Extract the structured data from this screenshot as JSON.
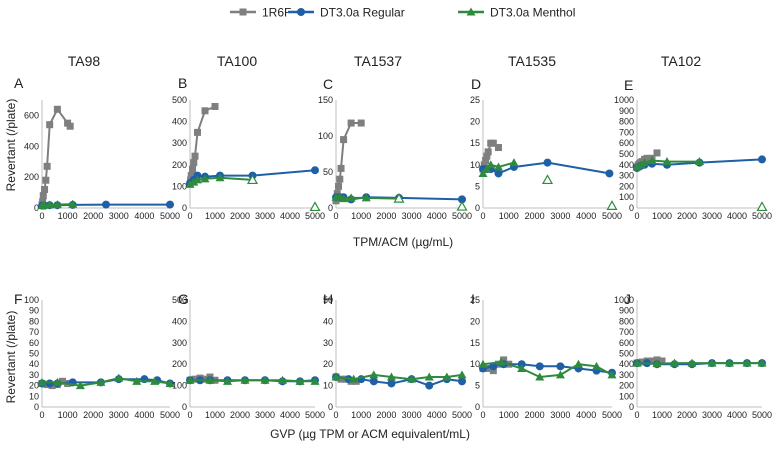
{
  "legend": {
    "items": [
      {
        "label": "1R6F",
        "color": "#7f7f7f",
        "marker": "square"
      },
      {
        "label": "DT3.0a Regular",
        "color": "#1f5fa6",
        "marker": "circle"
      },
      {
        "label": "DT3.0a Menthol",
        "color": "#2e8b3e",
        "marker": "triangle"
      }
    ]
  },
  "strain_titles": [
    "TA98",
    "TA100",
    "TA1537",
    "TA1535",
    "TA102"
  ],
  "row_labels": {
    "ylabel_top": "Revertant  (/plate)",
    "ylabel_bottom": "Revertant  (/plate)",
    "xlabel_top": "TPM/ACM (µg/mL)",
    "xlabel_bottom": "GVP (µg TPM or ACM equivalent/mL)"
  },
  "chart_data": [
    {
      "type": "line",
      "panel": "A",
      "strain": "TA98",
      "row": "TPM/ACM",
      "ylim": [
        0,
        700
      ],
      "yticks": [
        0,
        200,
        400,
        600
      ],
      "xlim": [
        0,
        5000
      ],
      "xticks": [
        0,
        1000,
        2000,
        3000,
        4000,
        5000
      ],
      "series": [
        {
          "name": "1R6F",
          "x": [
            0,
            25,
            50,
            100,
            150,
            200,
            300,
            600,
            1000,
            1100
          ],
          "y": [
            20,
            40,
            80,
            120,
            180,
            270,
            540,
            640,
            550,
            530
          ]
        },
        {
          "name": "DT3.0a Regular",
          "x": [
            0,
            100,
            300,
            600,
            1200,
            2500,
            5000
          ],
          "y": [
            15,
            15,
            18,
            18,
            20,
            22,
            22
          ]
        },
        {
          "name": "DT3.0a Menthol",
          "x": [
            0,
            100,
            300,
            600,
            1200
          ],
          "y": [
            15,
            18,
            20,
            22,
            25
          ]
        }
      ]
    },
    {
      "type": "line",
      "panel": "B",
      "strain": "TA100",
      "row": "TPM/ACM",
      "ylim": [
        0,
        500
      ],
      "yticks": [
        0,
        100,
        200,
        300,
        400,
        500
      ],
      "xlim": [
        0,
        5000
      ],
      "xticks": [
        0,
        1000,
        2000,
        3000,
        4000,
        5000
      ],
      "series": [
        {
          "name": "1R6F",
          "x": [
            0,
            25,
            50,
            100,
            150,
            200,
            300,
            600,
            1000
          ],
          "y": [
            110,
            130,
            150,
            180,
            210,
            240,
            350,
            450,
            470
          ]
        },
        {
          "name": "DT3.0a Regular",
          "x": [
            0,
            150,
            300,
            600,
            1200,
            2500,
            5000
          ],
          "y": [
            115,
            130,
            150,
            145,
            150,
            150,
            175
          ]
        },
        {
          "name": "DT3.0a Menthol",
          "x": [
            0,
            150,
            300,
            600,
            1200,
            2500
          ],
          "y": [
            110,
            120,
            130,
            135,
            140,
            130
          ]
        }
      ],
      "open_markers": [
        {
          "x": 2500,
          "y": 130
        },
        {
          "x": 5000,
          "y": 5
        }
      ]
    },
    {
      "type": "line",
      "panel": "C",
      "strain": "TA1537",
      "row": "TPM/ACM",
      "ylim": [
        0,
        150
      ],
      "yticks": [
        0,
        50,
        100,
        150
      ],
      "xlim": [
        0,
        5000
      ],
      "xticks": [
        0,
        1000,
        2000,
        3000,
        4000,
        5000
      ],
      "series": [
        {
          "name": "1R6F",
          "x": [
            0,
            50,
            100,
            150,
            200,
            300,
            600,
            1000
          ],
          "y": [
            10,
            20,
            30,
            40,
            55,
            95,
            118,
            118
          ]
        },
        {
          "name": "DT3.0a Regular",
          "x": [
            0,
            150,
            300,
            600,
            1200,
            2500,
            5000
          ],
          "y": [
            15,
            15,
            15,
            12,
            15,
            14,
            12
          ]
        },
        {
          "name": "DT3.0a Menthol",
          "x": [
            0,
            150,
            300,
            600,
            1200,
            2500
          ],
          "y": [
            15,
            15,
            13,
            14,
            14,
            13
          ]
        }
      ],
      "open_markers": [
        {
          "x": 2500,
          "y": 13
        },
        {
          "x": 5000,
          "y": 2
        }
      ]
    },
    {
      "type": "line",
      "panel": "D",
      "strain": "TA1535",
      "row": "TPM/ACM",
      "ylim": [
        0,
        25
      ],
      "yticks": [
        0,
        5,
        10,
        15,
        20,
        25
      ],
      "xlim": [
        0,
        5000
      ],
      "xticks": [
        0,
        1000,
        2000,
        3000,
        4000,
        5000
      ],
      "series": [
        {
          "name": "1R6F",
          "x": [
            0,
            50,
            100,
            150,
            200,
            300,
            400,
            600
          ],
          "y": [
            9,
            10,
            11,
            12,
            13,
            15,
            15,
            14
          ]
        },
        {
          "name": "DT3.0a Regular",
          "x": [
            0,
            150,
            300,
            600,
            1200,
            2500,
            4900
          ],
          "y": [
            9,
            9,
            9,
            8,
            9.5,
            10.5,
            8
          ]
        },
        {
          "name": "DT3.0a Menthol",
          "x": [
            0,
            150,
            300,
            600,
            1200
          ],
          "y": [
            8,
            9,
            10,
            9.5,
            10.5
          ]
        }
      ],
      "open_markers": [
        {
          "x": 2500,
          "y": 6.5
        },
        {
          "x": 5000,
          "y": 0.5
        }
      ]
    },
    {
      "type": "line",
      "panel": "E",
      "strain": "TA102",
      "row": "TPM/ACM",
      "ylim": [
        0,
        1000
      ],
      "yticks": [
        0,
        100,
        200,
        300,
        400,
        500,
        600,
        700,
        800,
        900,
        1000
      ],
      "xlim": [
        0,
        5000
      ],
      "xticks": [
        0,
        1000,
        2000,
        3000,
        4000,
        5000
      ],
      "series": [
        {
          "name": "1R6F",
          "x": [
            0,
            50,
            100,
            150,
            200,
            300,
            400,
            600,
            800
          ],
          "y": [
            380,
            400,
            410,
            420,
            430,
            450,
            460,
            460,
            510
          ]
        },
        {
          "name": "DT3.0a Regular",
          "x": [
            0,
            150,
            300,
            600,
            1200,
            2500,
            5000
          ],
          "y": [
            370,
            390,
            400,
            410,
            400,
            420,
            450
          ]
        },
        {
          "name": "DT3.0a Menthol",
          "x": [
            0,
            150,
            300,
            600,
            1200,
            2500
          ],
          "y": [
            380,
            400,
            420,
            440,
            430,
            430
          ]
        }
      ],
      "open_markers": [
        {
          "x": 5000,
          "y": 10
        }
      ]
    },
    {
      "type": "line",
      "panel": "F",
      "strain": "TA98",
      "row": "GVP",
      "ylim": [
        0,
        100
      ],
      "yticks": [
        0,
        10,
        20,
        30,
        40,
        50,
        60,
        70,
        80,
        90,
        100
      ],
      "xlim": [
        0,
        5000
      ],
      "xticks": [
        0,
        1000,
        2000,
        3000,
        4000,
        5000
      ],
      "series": [
        {
          "name": "1R6F",
          "x": [
            0,
            200,
            400,
            600,
            800,
            1000
          ],
          "y": [
            22,
            21,
            20,
            21,
            24,
            22
          ]
        },
        {
          "name": "DT3.0a Regular",
          "x": [
            0,
            300,
            600,
            1200,
            2300,
            3000,
            4000,
            4500,
            5000
          ],
          "y": [
            22,
            22,
            22,
            23,
            23,
            26,
            26,
            25,
            22
          ]
        },
        {
          "name": "DT3.0a Menthol",
          "x": [
            0,
            600,
            1500,
            2300,
            3000,
            3700,
            4400,
            5000
          ],
          "y": [
            23,
            23,
            20,
            23,
            27,
            24,
            24,
            22
          ]
        }
      ]
    },
    {
      "type": "line",
      "panel": "G",
      "strain": "TA100",
      "row": "GVP",
      "ylim": [
        0,
        500
      ],
      "yticks": [
        0,
        100,
        200,
        300,
        400,
        500
      ],
      "xlim": [
        0,
        5000
      ],
      "xticks": [
        0,
        1000,
        2000,
        3000,
        4000,
        5000
      ],
      "series": [
        {
          "name": "1R6F",
          "x": [
            0,
            200,
            400,
            600,
            800,
            1000
          ],
          "y": [
            125,
            130,
            135,
            130,
            140,
            125
          ]
        },
        {
          "name": "DT3.0a Regular",
          "x": [
            0,
            400,
            800,
            1500,
            2200,
            3000,
            3700,
            4400,
            5000
          ],
          "y": [
            125,
            125,
            125,
            125,
            125,
            125,
            120,
            120,
            125
          ]
        },
        {
          "name": "DT3.0a Menthol",
          "x": [
            0,
            800,
            1500,
            2200,
            3000,
            3700,
            4400,
            5000
          ],
          "y": [
            125,
            125,
            120,
            125,
            125,
            125,
            120,
            120
          ]
        }
      ]
    },
    {
      "type": "line",
      "panel": "H",
      "strain": "TA1537",
      "row": "GVP",
      "ylim": [
        0,
        50
      ],
      "yticks": [
        0,
        10,
        20,
        30,
        40,
        50
      ],
      "xlim": [
        0,
        5000
      ],
      "xticks": [
        0,
        1000,
        2000,
        3000,
        4000,
        5000
      ],
      "series": [
        {
          "name": "1R6F",
          "x": [
            0,
            200,
            400,
            600,
            800
          ],
          "y": [
            14,
            13,
            13,
            12,
            12
          ]
        },
        {
          "name": "DT3.0a Regular",
          "x": [
            0,
            500,
            1000,
            1500,
            2200,
            3000,
            3700,
            4400,
            5000
          ],
          "y": [
            14,
            13,
            13,
            12,
            11,
            13,
            10,
            13,
            12
          ]
        },
        {
          "name": "DT3.0a Menthol",
          "x": [
            0,
            700,
            1500,
            2200,
            3000,
            3700,
            4400,
            5000
          ],
          "y": [
            14,
            13,
            15,
            14,
            13,
            14,
            14,
            15
          ]
        }
      ]
    },
    {
      "type": "line",
      "panel": "I",
      "strain": "TA1535",
      "row": "GVP",
      "ylim": [
        0,
        25
      ],
      "yticks": [
        0,
        5,
        10,
        15,
        20,
        25
      ],
      "xlim": [
        0,
        5000
      ],
      "xticks": [
        0,
        1000,
        2000,
        3000,
        4000,
        5000
      ],
      "series": [
        {
          "name": "1R6F",
          "x": [
            0,
            200,
            400,
            600,
            800,
            1000
          ],
          "y": [
            9,
            9,
            8.5,
            10,
            11,
            10
          ]
        },
        {
          "name": "DT3.0a Regular",
          "x": [
            0,
            400,
            800,
            1500,
            2200,
            3000,
            3700,
            4400,
            5000
          ],
          "y": [
            9,
            9.5,
            10,
            10,
            9.5,
            9.5,
            9,
            8.5,
            8
          ]
        },
        {
          "name": "DT3.0a Menthol",
          "x": [
            0,
            700,
            1500,
            2200,
            3000,
            3700,
            4400,
            5000
          ],
          "y": [
            10,
            10.5,
            9,
            7,
            7.5,
            10,
            9.5,
            7.5
          ]
        }
      ]
    },
    {
      "type": "line",
      "panel": "J",
      "strain": "TA102",
      "row": "GVP",
      "ylim": [
        0,
        1000
      ],
      "yticks": [
        0,
        100,
        200,
        300,
        400,
        500,
        600,
        700,
        800,
        900,
        1000
      ],
      "xlim": [
        0,
        5000
      ],
      "xticks": [
        0,
        1000,
        2000,
        3000,
        4000,
        5000
      ],
      "series": [
        {
          "name": "1R6F",
          "x": [
            0,
            200,
            400,
            600,
            800,
            1000
          ],
          "y": [
            410,
            420,
            430,
            430,
            440,
            430
          ]
        },
        {
          "name": "DT3.0a Regular",
          "x": [
            0,
            400,
            800,
            1500,
            2200,
            3000,
            3700,
            4400,
            5000
          ],
          "y": [
            410,
            410,
            400,
            400,
            400,
            410,
            410,
            410,
            410
          ]
        },
        {
          "name": "DT3.0a Menthol",
          "x": [
            0,
            800,
            1500,
            2200,
            3000,
            3700,
            4400,
            5000
          ],
          "y": [
            410,
            405,
            410,
            410,
            410,
            410,
            410,
            410
          ]
        }
      ]
    }
  ]
}
